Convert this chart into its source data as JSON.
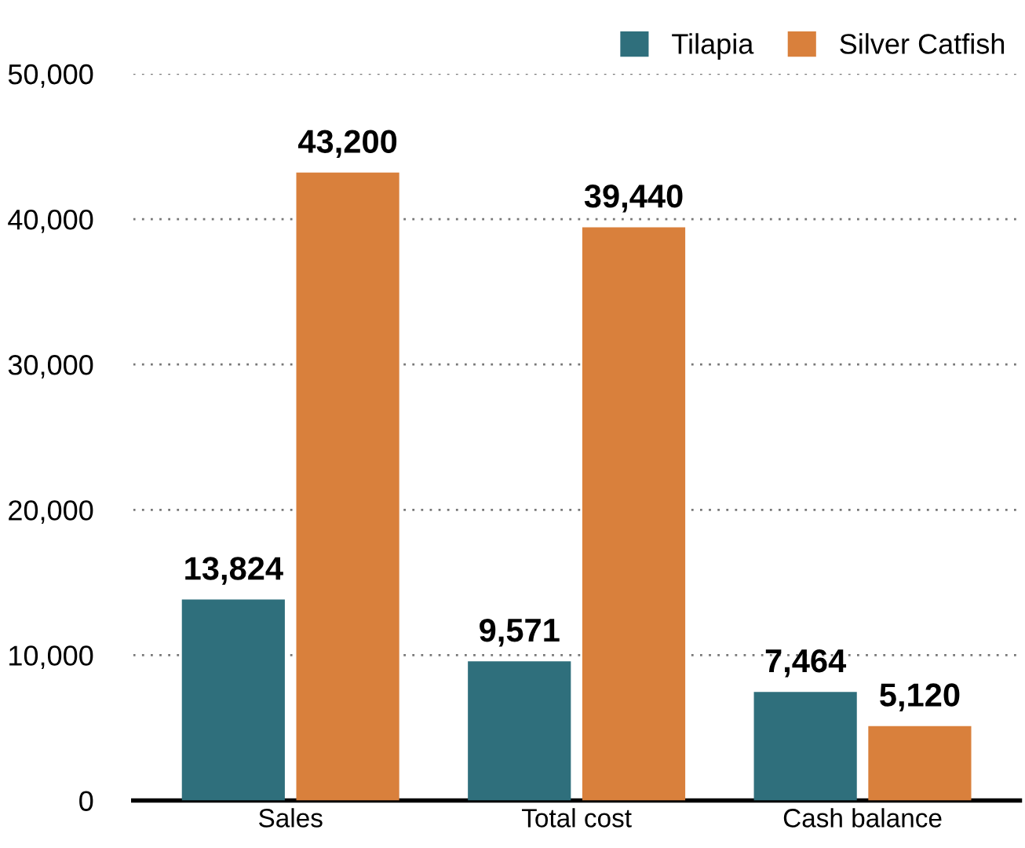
{
  "chart_data": {
    "type": "bar",
    "categories": [
      "Sales",
      "Total cost",
      "Cash balance"
    ],
    "series": [
      {
        "name": "Tilapia",
        "color": "#2f6f7c",
        "values": [
          13824,
          9571,
          7464
        ],
        "value_labels": [
          "13,824",
          "9,571",
          "7,464"
        ]
      },
      {
        "name": "Silver Catfish",
        "color": "#d9803c",
        "values": [
          43200,
          39440,
          5120
        ],
        "value_labels": [
          "43,200",
          "39,440",
          "5,120"
        ]
      }
    ],
    "ylim": [
      0,
      50000
    ],
    "yticks": [
      0,
      {
        "value": 10000,
        "label": "10,000"
      },
      {
        "value": 20000,
        "label": "20,000"
      },
      {
        "value": 30000,
        "label": "30,000"
      },
      {
        "value": 40000,
        "label": "40,000"
      },
      {
        "value": 50000,
        "label": "50,000"
      }
    ],
    "grid": "y",
    "legend": "top right"
  }
}
